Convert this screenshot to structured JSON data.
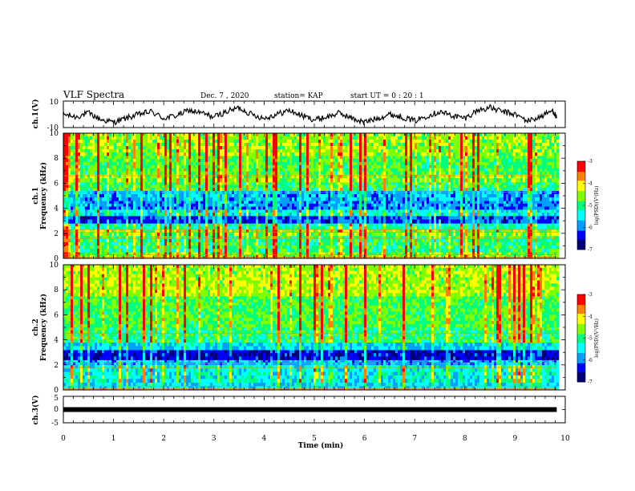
{
  "header": {
    "title": "VLF Spectra",
    "date": "Dec. 7 , 2020",
    "station": "station= KAP",
    "start_ut": "start UT =  0 : 20 : 1"
  },
  "chart_data": [
    {
      "type": "line",
      "name": "ch1-waveform",
      "ylabel": "ch.1(V)",
      "ylim": [
        -10,
        10
      ],
      "yticks": [
        "10",
        "-10"
      ],
      "xlim": [
        0,
        10
      ],
      "x": [
        0,
        0.25,
        0.5,
        0.75,
        1,
        1.25,
        1.5,
        1.75,
        2,
        2.25,
        2.5,
        2.75,
        3,
        3.25,
        3.5,
        3.75,
        4,
        4.25,
        4.5,
        4.75,
        5,
        5.25,
        5.5,
        5.75,
        6,
        6.25,
        6.5,
        6.75,
        7,
        7.25,
        7.5,
        7.75,
        8,
        8.25,
        8.5,
        8.75,
        9,
        9.25,
        9.5,
        9.75,
        9.83
      ],
      "y": [
        0,
        -2,
        1,
        -4,
        -6,
        -3,
        0,
        2,
        -3,
        -1,
        3,
        1,
        -2,
        2,
        5,
        0,
        -3,
        0,
        3,
        -1,
        -4,
        -2,
        1,
        -3,
        -6,
        -3,
        0,
        -2,
        -5,
        -1,
        2,
        -1,
        -3,
        3,
        5,
        2,
        0,
        -5,
        -2,
        3,
        -2
      ]
    },
    {
      "type": "heatmap",
      "name": "ch1-spectrogram",
      "ylabel": "ch.1\nFrequency (kHz)",
      "ylim": [
        0,
        10
      ],
      "yticks": [
        "0",
        "2",
        "4",
        "6",
        "8",
        "10"
      ],
      "xlim": [
        0,
        10
      ],
      "zlim": [
        -7,
        -3
      ],
      "z_label": "log(PSD)(V²/Hz)",
      "colorbar_ticks": [
        "-3",
        "-4",
        "-5",
        "-6",
        "-7"
      ],
      "band_levels": [
        {
          "f": [
            0,
            0.5
          ],
          "z": -4.6
        },
        {
          "f": [
            0.5,
            1.8
          ],
          "z": -5.0
        },
        {
          "f": [
            1.8,
            2.3
          ],
          "z": -4.6
        },
        {
          "f": [
            2.3,
            2.8
          ],
          "z": -5.2
        },
        {
          "f": [
            2.8,
            3.4
          ],
          "z": -6.2
        },
        {
          "f": [
            3.4,
            3.9
          ],
          "z": -5.4
        },
        {
          "f": [
            3.9,
            4.6
          ],
          "z": -6.0
        },
        {
          "f": [
            4.6,
            5.4
          ],
          "z": -5.8
        },
        {
          "f": [
            5.4,
            6.1
          ],
          "z": -4.9
        },
        {
          "f": [
            6.1,
            6.7
          ],
          "z": -4.6
        },
        {
          "f": [
            6.7,
            8.2
          ],
          "z": -4.8
        },
        {
          "f": [
            8.2,
            10
          ],
          "z": -4.5
        }
      ]
    },
    {
      "type": "heatmap",
      "name": "ch2-spectrogram",
      "ylabel": "ch.2\nFrequency (kHz)",
      "ylim": [
        0,
        10
      ],
      "yticks": [
        "0",
        "2",
        "4",
        "6",
        "8",
        "10"
      ],
      "xlim": [
        0,
        10
      ],
      "zlim": [
        -7,
        -3
      ],
      "z_label": "log(PSD)(V²/Hz)",
      "colorbar_ticks": [
        "-3",
        "-4",
        "-5",
        "-6",
        "-7"
      ],
      "band_levels": [
        {
          "f": [
            0,
            0.6
          ],
          "z": -5.6
        },
        {
          "f": [
            0.6,
            2.0
          ],
          "z": -5.4
        },
        {
          "f": [
            2.0,
            2.4
          ],
          "z": -5.8
        },
        {
          "f": [
            2.4,
            3.2
          ],
          "z": -6.5
        },
        {
          "f": [
            3.2,
            3.8
          ],
          "z": -5.6
        },
        {
          "f": [
            3.8,
            5.0
          ],
          "z": -5.0
        },
        {
          "f": [
            5.0,
            7.5
          ],
          "z": -4.8
        },
        {
          "f": [
            7.5,
            10
          ],
          "z": -4.4
        }
      ]
    },
    {
      "type": "line",
      "name": "ch3-waveform",
      "ylabel": "ch.3(V)",
      "ylim": [
        -5,
        5
      ],
      "yticks": [
        "5",
        "0",
        "-5"
      ],
      "xlim": [
        0,
        10
      ],
      "x": [
        0,
        9.83
      ],
      "y": [
        0,
        0
      ]
    }
  ],
  "xaxis": {
    "label": "Time (min)",
    "ticks": [
      "0",
      "1",
      "2",
      "3",
      "4",
      "5",
      "6",
      "7",
      "8",
      "9",
      "10"
    ]
  },
  "colors": {
    "waveform": "#000000",
    "colormap": [
      "#00007a",
      "#0000ff",
      "#00a0ff",
      "#00ffff",
      "#00ff7f",
      "#7fff00",
      "#ffff00",
      "#ff8000",
      "#ff0000",
      "#ffffff"
    ]
  }
}
